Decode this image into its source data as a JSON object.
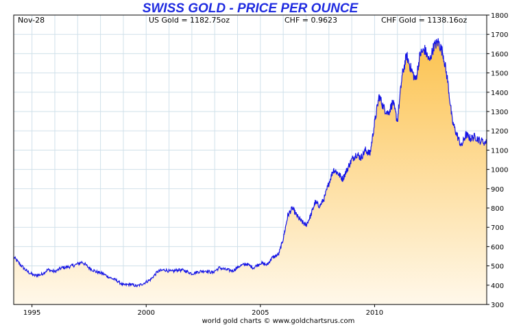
{
  "chart_data": {
    "type": "area",
    "title": "SWISS GOLD - PRICE PER OUNCE",
    "header": {
      "date": "Nov-28",
      "us_gold": "US Gold = 1182.75oz",
      "chf_rate": "CHF = 0.9623",
      "chf_gold": "CHF Gold = 1138.16oz"
    },
    "credit": "world gold charts © www.goldchartsrus.com",
    "x_tick_labels": [
      "1995",
      "2000",
      "2005",
      "2010"
    ],
    "y_tick_labels": [
      "300",
      "400",
      "500",
      "600",
      "700",
      "800",
      "900",
      "1000",
      "1100",
      "1200",
      "1300",
      "1400",
      "1500",
      "1600",
      "1700",
      "1800"
    ],
    "xlim": [
      1994.2,
      2014.91
    ],
    "ylim": [
      300,
      1800
    ],
    "grid": true,
    "colors": {
      "line": "#1414e6",
      "fill_top": "#fcc24e",
      "fill_bottom": "#fff8ea",
      "grid": "#cfe0ea",
      "title": "#1f2be0"
    },
    "series": [
      {
        "x": [
          1994.2,
          1994.5,
          1994.8,
          1995.1,
          1995.4,
          1995.7,
          1996.0,
          1996.3,
          1996.6,
          1996.9,
          1997.2,
          1997.5,
          1997.8,
          1998.1,
          1998.4,
          1998.7,
          1999.0,
          1999.3,
          1999.6,
          1999.9,
          2000.2,
          2000.5,
          2000.8,
          2001.1,
          2001.4,
          2001.7,
          2002.0,
          2002.3,
          2002.6,
          2002.9,
          2003.2,
          2003.5,
          2003.8,
          2004.1,
          2004.4,
          2004.7,
          2005.0,
          2005.3,
          2005.5,
          2005.8,
          2006.0,
          2006.2,
          2006.4,
          2006.6,
          2006.8,
          2007.0,
          2007.2,
          2007.4,
          2007.6,
          2007.8,
          2008.0,
          2008.2,
          2008.4,
          2008.6,
          2008.8,
          2009.0,
          2009.2,
          2009.4,
          2009.6,
          2009.8,
          2010.0,
          2010.2,
          2010.4,
          2010.6,
          2010.8,
          2011.0,
          2011.2,
          2011.4,
          2011.6,
          2011.8,
          2012.0,
          2012.2,
          2012.4,
          2012.6,
          2012.8,
          2013.0,
          2013.2,
          2013.4,
          2013.6,
          2013.8,
          2014.0,
          2014.2,
          2014.4,
          2014.6,
          2014.91
        ],
        "y": [
          545,
          505,
          470,
          450,
          455,
          480,
          470,
          490,
          495,
          505,
          520,
          490,
          470,
          460,
          440,
          425,
          400,
          405,
          395,
          410,
          430,
          470,
          480,
          470,
          480,
          475,
          460,
          470,
          475,
          465,
          490,
          480,
          475,
          500,
          510,
          490,
          515,
          505,
          540,
          560,
          640,
          760,
          800,
          760,
          730,
          710,
          760,
          830,
          810,
          850,
          930,
          1000,
          980,
          950,
          1000,
          1050,
          1080,
          1060,
          1100,
          1080,
          1240,
          1380,
          1320,
          1290,
          1350,
          1250,
          1480,
          1590,
          1520,
          1460,
          1600,
          1620,
          1560,
          1640,
          1660,
          1600,
          1460,
          1250,
          1180,
          1120,
          1180,
          1160,
          1170,
          1150,
          1138
        ]
      }
    ]
  }
}
